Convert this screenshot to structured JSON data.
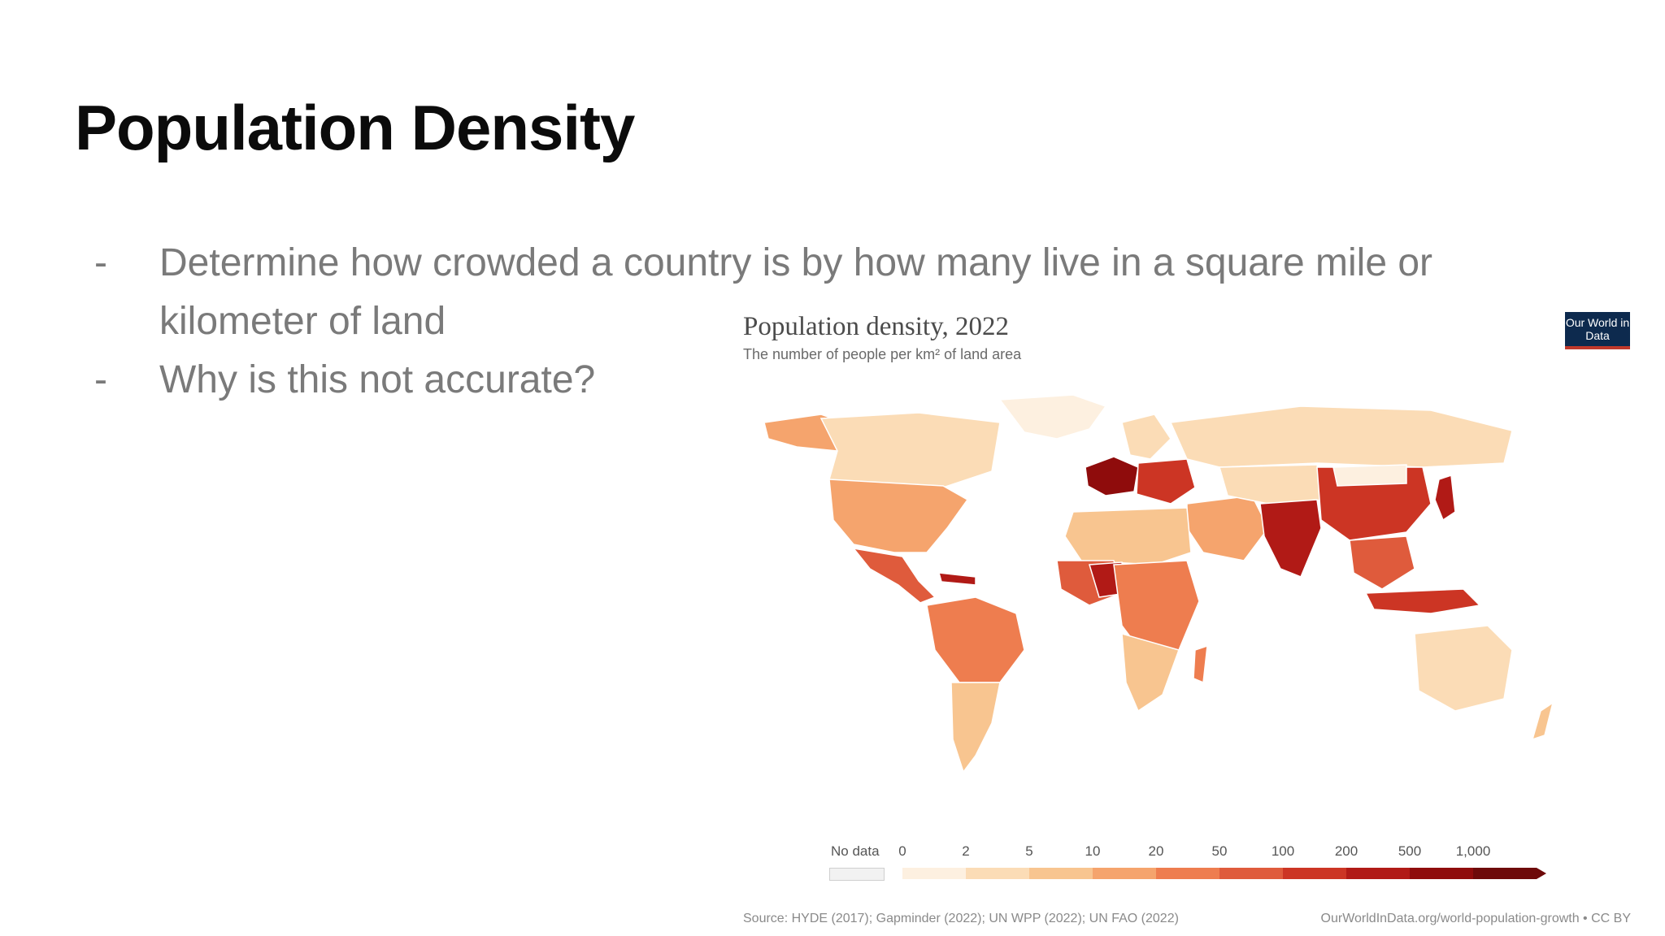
{
  "slide": {
    "title": "Population Density",
    "bullets": [
      {
        "dash": "-",
        "text": "Determine how crowded a country is by how many live in a square mile or kilometer of land"
      },
      {
        "dash": "-",
        "text": "Why is this not accurate?"
      }
    ]
  },
  "figure": {
    "title": "Population density, 2022",
    "subtitle": "The number of people per km² of land area",
    "logo_text": "Our World in Data",
    "source": "Source: HYDE (2017); Gapminder (2022); UN WPP (2022); UN FAO (2022)",
    "credit": "OurWorldInData.org/world-population-growth • CC BY",
    "legend": {
      "no_data_label": "No data",
      "ticks": [
        "0",
        "2",
        "5",
        "10",
        "20",
        "50",
        "100",
        "200",
        "500",
        "1,000"
      ],
      "colors": [
        "#fdf0e0",
        "#fbdcb6",
        "#f8c590",
        "#f5a46d",
        "#ee7d4f",
        "#df5b3c",
        "#cc3524",
        "#b11a16",
        "#8f0c0c",
        "#6e0a0a"
      ]
    }
  }
}
